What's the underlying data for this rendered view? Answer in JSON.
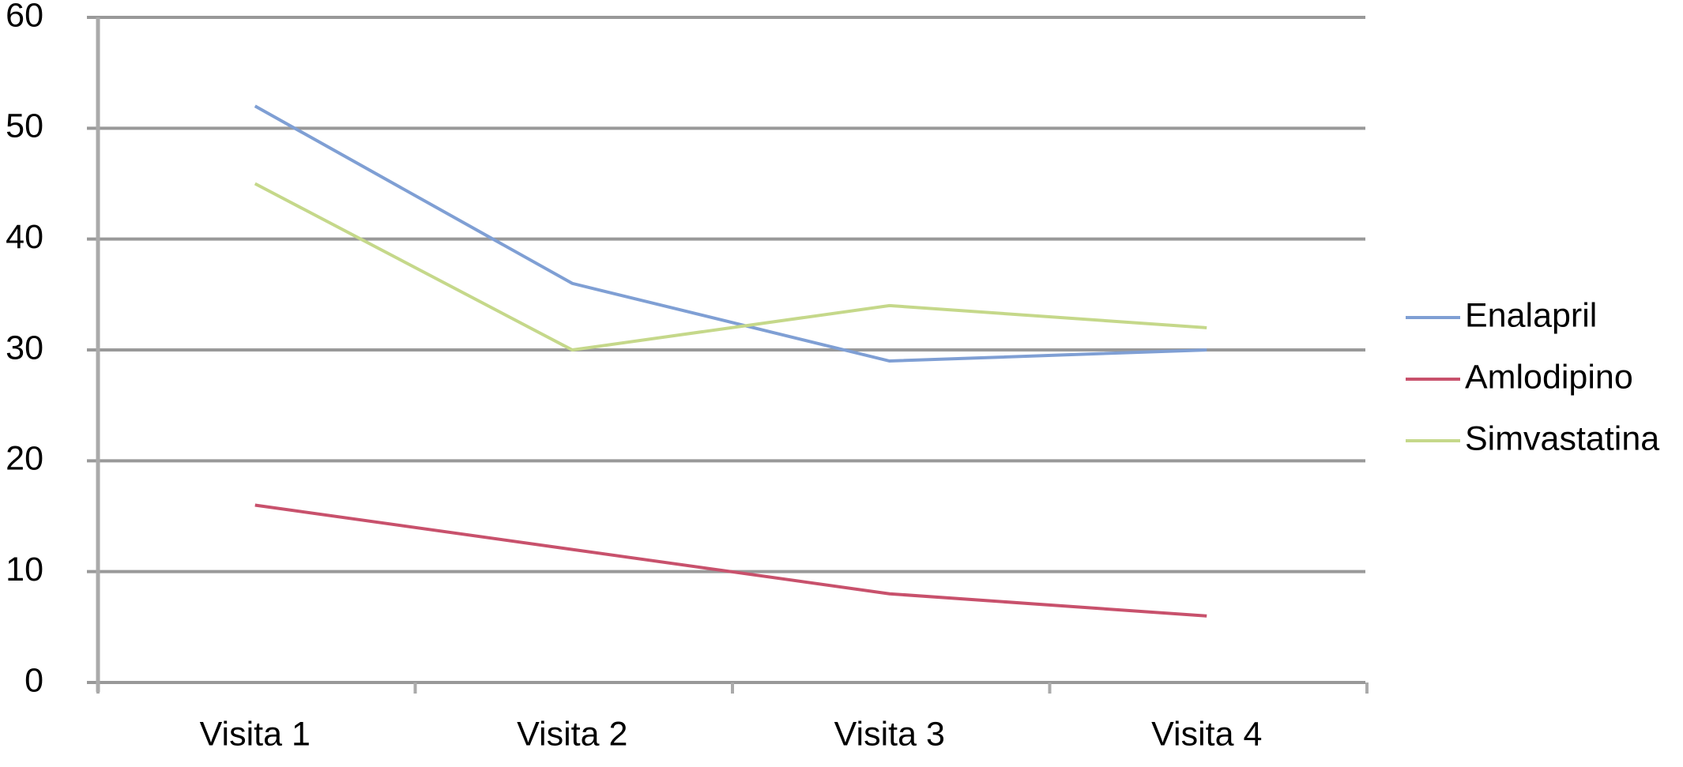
{
  "chart_data": {
    "type": "line",
    "categories": [
      "Visita 1",
      "Visita 2",
      "Visita 3",
      "Visita 4"
    ],
    "series": [
      {
        "name": "Enalapril",
        "color": "#7f9fd4",
        "values": [
          52,
          36,
          29,
          30
        ]
      },
      {
        "name": "Amlodipino",
        "color": "#c8516c",
        "values": [
          16,
          12,
          8,
          6
        ]
      },
      {
        "name": "Simvastatina",
        "color": "#c5d88a",
        "values": [
          45,
          30,
          34,
          32
        ]
      }
    ],
    "ylim": [
      0,
      60
    ],
    "yticks": [
      0,
      10,
      20,
      30,
      40,
      50,
      60
    ],
    "grid": true,
    "legend": "right"
  }
}
